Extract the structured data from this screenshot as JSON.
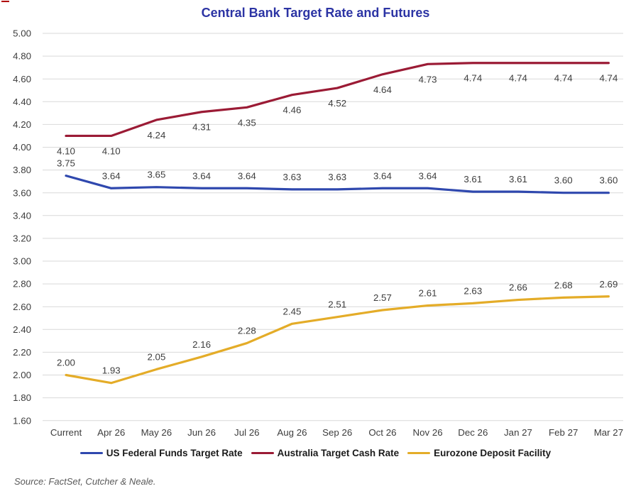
{
  "title": "Central Bank Target Rate and Futures",
  "source_note": "Source: FactSet, Cutcher & Neale.",
  "colors": {
    "title": "#2C34A4",
    "gridline": "#D9D9D9",
    "axis_label": "#3D3D3D",
    "data_label": "#3D3D3D",
    "legend_text": "#1A1A1A",
    "source_text": "#595959",
    "artifact_mark": "#B00000"
  },
  "chart_data": {
    "type": "line",
    "title": "Central Bank Target Rate and Futures",
    "categories": [
      "Current",
      "Apr 26",
      "May 26",
      "Jun 26",
      "Jul 26",
      "Aug 26",
      "Sep 26",
      "Oct 26",
      "Nov 26",
      "Dec 26",
      "Jan 27",
      "Feb 27",
      "Mar 27"
    ],
    "series": [
      {
        "name": "US Federal Funds Target Rate",
        "color": "#2F48AE",
        "label_position": "above",
        "values": [
          3.75,
          3.64,
          3.65,
          3.64,
          3.64,
          3.63,
          3.63,
          3.64,
          3.64,
          3.61,
          3.61,
          3.6,
          3.6
        ]
      },
      {
        "name": "Australia Target Cash Rate",
        "color": "#9B1B35",
        "label_position": "below",
        "values": [
          4.1,
          4.1,
          4.24,
          4.31,
          4.35,
          4.46,
          4.52,
          4.64,
          4.73,
          4.74,
          4.74,
          4.74,
          4.74
        ]
      },
      {
        "name": "Eurozone Deposit Facility",
        "color": "#E4AC28",
        "label_position": "above",
        "values": [
          2.0,
          1.93,
          2.05,
          2.16,
          2.28,
          2.45,
          2.51,
          2.57,
          2.61,
          2.63,
          2.66,
          2.68,
          2.69
        ]
      }
    ],
    "ylim": [
      1.6,
      5.0
    ],
    "ytick_step": 0.2,
    "ytick_decimals": 2,
    "data_label_decimals": 2,
    "grid": true,
    "legend_position": "bottom"
  }
}
